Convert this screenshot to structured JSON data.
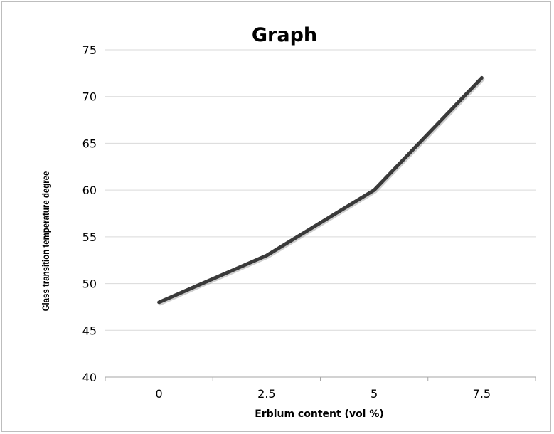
{
  "chart_data": {
    "type": "line",
    "title": "Graph",
    "xlabel": "Erbium content (vol %)",
    "ylabel": "Glass transition temperature degree",
    "categories": [
      "0",
      "2.5",
      "5",
      "7.5"
    ],
    "series": [
      {
        "values": [
          48,
          53,
          60,
          72
        ]
      }
    ],
    "ylim": [
      40,
      75
    ],
    "yticks": [
      "40",
      "45",
      "50",
      "55",
      "60",
      "65",
      "70",
      "75"
    ],
    "grid": true,
    "legend": "none",
    "colors": {
      "line": "#3a3a3a",
      "grid": "#d9d9d9",
      "axis": "#a6a6a6"
    }
  }
}
